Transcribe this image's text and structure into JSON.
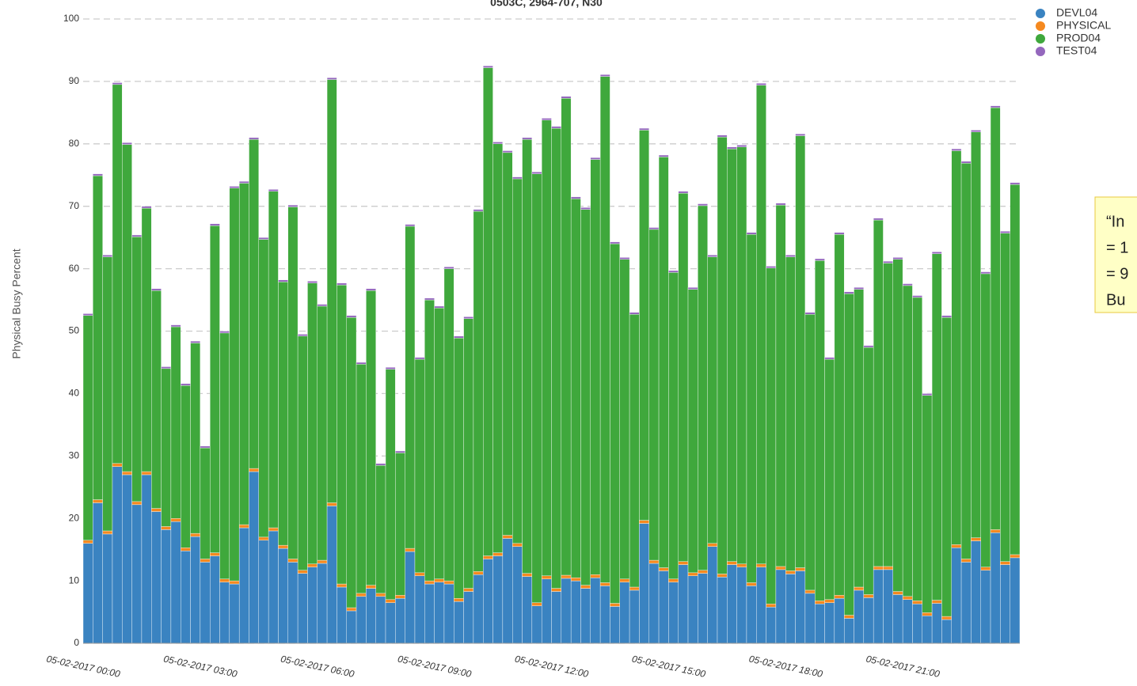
{
  "chart_data": {
    "type": "stacked_bar",
    "title": "0503C, 2964-707, N30",
    "y_label": "Physical Busy Percent",
    "note_lines": [
      "“In",
      "= 1",
      "= 9",
      "Bu"
    ],
    "categories": [
      "05-02-2017 00:00",
      null,
      null,
      null,
      null,
      null,
      null,
      null,
      null,
      null,
      null,
      null,
      "05-02-2017 03:00",
      null,
      null,
      null,
      null,
      null,
      null,
      null,
      null,
      null,
      null,
      null,
      "05-02-2017 06:00",
      null,
      null,
      null,
      null,
      null,
      null,
      null,
      null,
      null,
      null,
      null,
      "05-02-2017 09:00",
      null,
      null,
      null,
      null,
      null,
      null,
      null,
      null,
      null,
      null,
      null,
      "05-02-2017 12:00",
      null,
      null,
      null,
      null,
      null,
      null,
      null,
      null,
      null,
      null,
      null,
      "05-02-2017 15:00",
      null,
      null,
      null,
      null,
      null,
      null,
      null,
      null,
      null,
      null,
      null,
      "05-02-2017 18:00",
      null,
      null,
      null,
      null,
      null,
      null,
      null,
      null,
      null,
      null,
      null,
      "05-02-2017 21:00",
      null,
      null,
      null,
      null,
      null,
      null,
      null,
      null,
      null,
      null,
      null
    ],
    "series": [
      {
        "name": "DEVL04",
        "color": "#3a83c1",
        "values": [
          16,
          22.5,
          17.5,
          28.3,
          27,
          22.2,
          27,
          21.1,
          18.2,
          19.5,
          14.8,
          17.1,
          13,
          14,
          9.8,
          9.5,
          18.5,
          27.5,
          16.5,
          18,
          15.2,
          13,
          11.2,
          12.2,
          12.8,
          22,
          9,
          5.2,
          7.5,
          8.8,
          7.5,
          6.5,
          7.2,
          14.7,
          10.8,
          9.5,
          9.8,
          9.5,
          6.7,
          8.3,
          11,
          13.5,
          14,
          16.8,
          15.5,
          10.7,
          6,
          10.3,
          8.3,
          10.4,
          10,
          8.8,
          10.5,
          9.2,
          5.9,
          9.8,
          8.5,
          19.2,
          12.8,
          11.6,
          9.8,
          12.6,
          10.8,
          11.2,
          15.5,
          10.6,
          12.6,
          12.2,
          9.2,
          12.2,
          5.8,
          11.8,
          11.1,
          11.6,
          8,
          6.3,
          6.5,
          7.2,
          4,
          8.5,
          7.3,
          11.8,
          11.8,
          7.8,
          7,
          6.3,
          4.4,
          6.4,
          3.8,
          15.3,
          13,
          16.4,
          11.7,
          17.7,
          12.6,
          13.7
        ]
      },
      {
        "name": "PHYSICAL",
        "color": "#f5891f",
        "values": [
          0.5,
          0.5,
          0.5,
          0.5,
          0.5,
          0.5,
          0.5,
          0.5,
          0.5,
          0.5,
          0.5,
          0.5,
          0.5,
          0.5,
          0.5,
          0.5,
          0.5,
          0.5,
          0.5,
          0.5,
          0.5,
          0.5,
          0.5,
          0.5,
          0.5,
          0.5,
          0.5,
          0.5,
          0.5,
          0.5,
          0.5,
          0.5,
          0.5,
          0.5,
          0.5,
          0.5,
          0.5,
          0.5,
          0.5,
          0.5,
          0.5,
          0.5,
          0.5,
          0.5,
          0.5,
          0.5,
          0.5,
          0.5,
          0.5,
          0.5,
          0.5,
          0.5,
          0.5,
          0.5,
          0.5,
          0.5,
          0.5,
          0.5,
          0.5,
          0.5,
          0.5,
          0.5,
          0.5,
          0.5,
          0.5,
          0.5,
          0.5,
          0.5,
          0.5,
          0.5,
          0.5,
          0.5,
          0.5,
          0.5,
          0.5,
          0.5,
          0.5,
          0.5,
          0.5,
          0.5,
          0.5,
          0.5,
          0.5,
          0.5,
          0.5,
          0.5,
          0.5,
          0.5,
          0.5,
          0.5,
          0.5,
          0.5,
          0.5,
          0.5,
          0.5,
          0.5
        ]
      },
      {
        "name": "PROD04",
        "color": "#3fa83c",
        "values": [
          36,
          51.9,
          43.9,
          60.7,
          52.4,
          42.4,
          42.2,
          34.9,
          25.3,
          30.7,
          26,
          30.5,
          17.8,
          52.4,
          39.4,
          62.9,
          54.7,
          52.7,
          47.7,
          53.9,
          42.2,
          56.4,
          37.5,
          45,
          40.7,
          67.8,
          47.9,
          46.5,
          36.7,
          47.2,
          20.5,
          36.9,
          22.8,
          51.6,
          34.2,
          45,
          43.4,
          50,
          41.7,
          43.2,
          57.7,
          78.2,
          65.5,
          61.3,
          58.4,
          69.5,
          68.7,
          73,
          73.7,
          76.4,
          60.7,
          60.2,
          66.5,
          81.1,
          57.6,
          51.2,
          43.7,
          62.5,
          53,
          65.8,
          49.1,
          59,
          45.4,
          58.4,
          45.9,
          70,
          66.1,
          66.8,
          55.8,
          76.7,
          53.8,
          57.9,
          50.3,
          69.2,
          44.2,
          54.5,
          38.5,
          57.8,
          51.5,
          47.7,
          39.6,
          55.5,
          48.6,
          53.2,
          49.8,
          48.6,
          34.8,
          55.5,
          47.9,
          63.1,
          63.4,
          65,
          47,
          67.6,
          52.6,
          59.3
        ]
      },
      {
        "name": "TEST04",
        "color": "#9467bd",
        "values": [
          0.3,
          0.3,
          0.3,
          0.3,
          0.3,
          0.3,
          0.3,
          0.3,
          0.3,
          0.3,
          0.3,
          0.3,
          0.3,
          0.3,
          0.3,
          0.3,
          0.3,
          0.3,
          0.3,
          0.3,
          0.3,
          0.3,
          0.3,
          0.3,
          0.3,
          0.3,
          0.3,
          0.3,
          0.3,
          0.3,
          0.3,
          0.3,
          0.3,
          0.3,
          0.3,
          0.3,
          0.3,
          0.3,
          0.3,
          0.3,
          0.3,
          0.3,
          0.3,
          0.3,
          0.3,
          0.3,
          0.3,
          0.3,
          0.3,
          0.3,
          0.3,
          0.3,
          0.3,
          0.3,
          0.3,
          0.3,
          0.3,
          0.3,
          0.3,
          0.3,
          0.3,
          0.3,
          0.3,
          0.3,
          0.3,
          0.3,
          0.3,
          0.3,
          0.3,
          0.3,
          0.3,
          0.3,
          0.3,
          0.3,
          0.3,
          0.3,
          0.3,
          0.3,
          0.3,
          0.3,
          0.3,
          0.3,
          0.3,
          0.3,
          0.3,
          0.3,
          0.3,
          0.3,
          0.3,
          0.3,
          0.3,
          0.3,
          0.3,
          0.3,
          0.3,
          0.3
        ]
      }
    ],
    "ylim": [
      0,
      100
    ],
    "yticks": [
      0,
      10,
      20,
      30,
      40,
      50,
      60,
      70,
      80,
      90,
      100
    ],
    "grid": true,
    "legend": "top-right"
  }
}
